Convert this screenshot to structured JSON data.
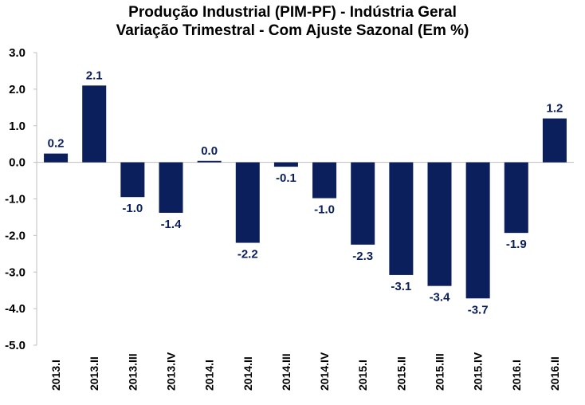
{
  "chart_data": {
    "type": "bar",
    "title": "Produção Industrial (PIM-PF) - Indústria Geral",
    "subtitle": "Variação Trimestral - Com Ajuste Sazonal (Em %)",
    "xlabel": "",
    "ylabel": "",
    "categories": [
      "2013.I",
      "2013.II",
      "2013.III",
      "2013.IV",
      "2014.I",
      "2014.II",
      "2014.III",
      "2014.IV",
      "2015.I",
      "2015.II",
      "2015.III",
      "2015.IV",
      "2016.I",
      "2016.II"
    ],
    "values": [
      0.24,
      2.1,
      -0.95,
      -1.38,
      0.04,
      -2.2,
      -0.12,
      -0.98,
      -2.25,
      -3.08,
      -3.38,
      -3.72,
      -1.93,
      1.2
    ],
    "data_labels": [
      "0.2",
      "2.1",
      "-1.0",
      "-1.4",
      "0.0",
      "-2.2",
      "-0.1",
      "-1.0",
      "-2.3",
      "-3.1",
      "-3.4",
      "-3.7",
      "-1.9",
      "1.2"
    ],
    "y_ticks": [
      "3.0",
      "2.0",
      "1.0",
      "0.0",
      "-1.0",
      "-2.0",
      "-3.0",
      "-4.0",
      "-5.0"
    ],
    "ylim": [
      -5,
      3
    ],
    "grid": false,
    "legend": "none",
    "bar_color": "#0b1f5c",
    "axis_color": "#bfbfbf"
  }
}
